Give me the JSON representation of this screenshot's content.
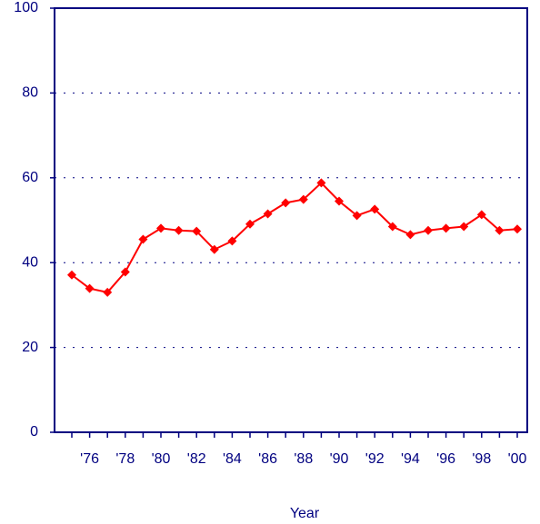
{
  "chart_data": {
    "type": "line",
    "x_label": "Year",
    "categories": [
      null,
      "'76",
      null,
      "'78",
      null,
      "'80",
      null,
      "'82",
      null,
      "'84",
      null,
      "'86",
      null,
      "'88",
      null,
      "'90",
      null,
      "'92",
      null,
      "'94",
      null,
      "'96",
      null,
      "'98",
      null,
      "'00"
    ],
    "series": [
      {
        "color": "#ff0000",
        "values": [
          37.1,
          33.9,
          33.0,
          37.8,
          45.5,
          48.1,
          47.6,
          47.4,
          43.1,
          45.1,
          49.1,
          51.5,
          54.1,
          54.9,
          58.8,
          54.5,
          51.1,
          52.6,
          48.5,
          46.6,
          47.6,
          48.1,
          48.5,
          51.3,
          47.6,
          47.9
        ]
      }
    ],
    "ylim": [
      0,
      100
    ],
    "yticks": [
      0,
      20,
      40,
      60,
      80,
      100
    ],
    "grid": true
  }
}
